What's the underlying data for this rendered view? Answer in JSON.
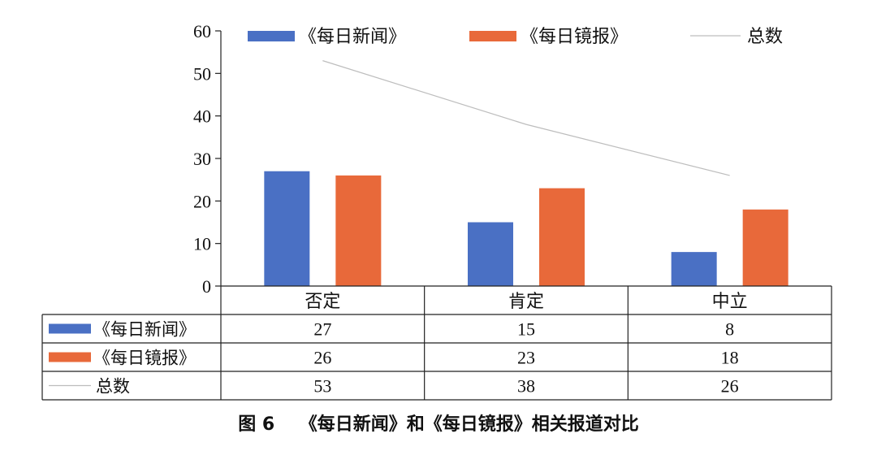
{
  "chart_data": {
    "type": "bar",
    "categories": [
      "否定",
      "肯定",
      "中立"
    ],
    "series": [
      {
        "name": "《每日新闻》",
        "type": "bar",
        "values": [
          27,
          15,
          8
        ],
        "color": "#4a70c4"
      },
      {
        "name": "《每日镜报》",
        "type": "bar",
        "values": [
          26,
          23,
          18
        ],
        "color": "#e8693a"
      },
      {
        "name": "总数",
        "type": "line",
        "values": [
          53,
          38,
          26
        ],
        "color": "#c8c8c8"
      }
    ],
    "ylim": [
      0,
      60
    ],
    "yticks": [
      0,
      10,
      20,
      30,
      40,
      50,
      60
    ],
    "legend": "top",
    "grid": false,
    "data_table": true
  },
  "caption": "图 6    《每日新闻》和《每日镜报》相关报道对比"
}
